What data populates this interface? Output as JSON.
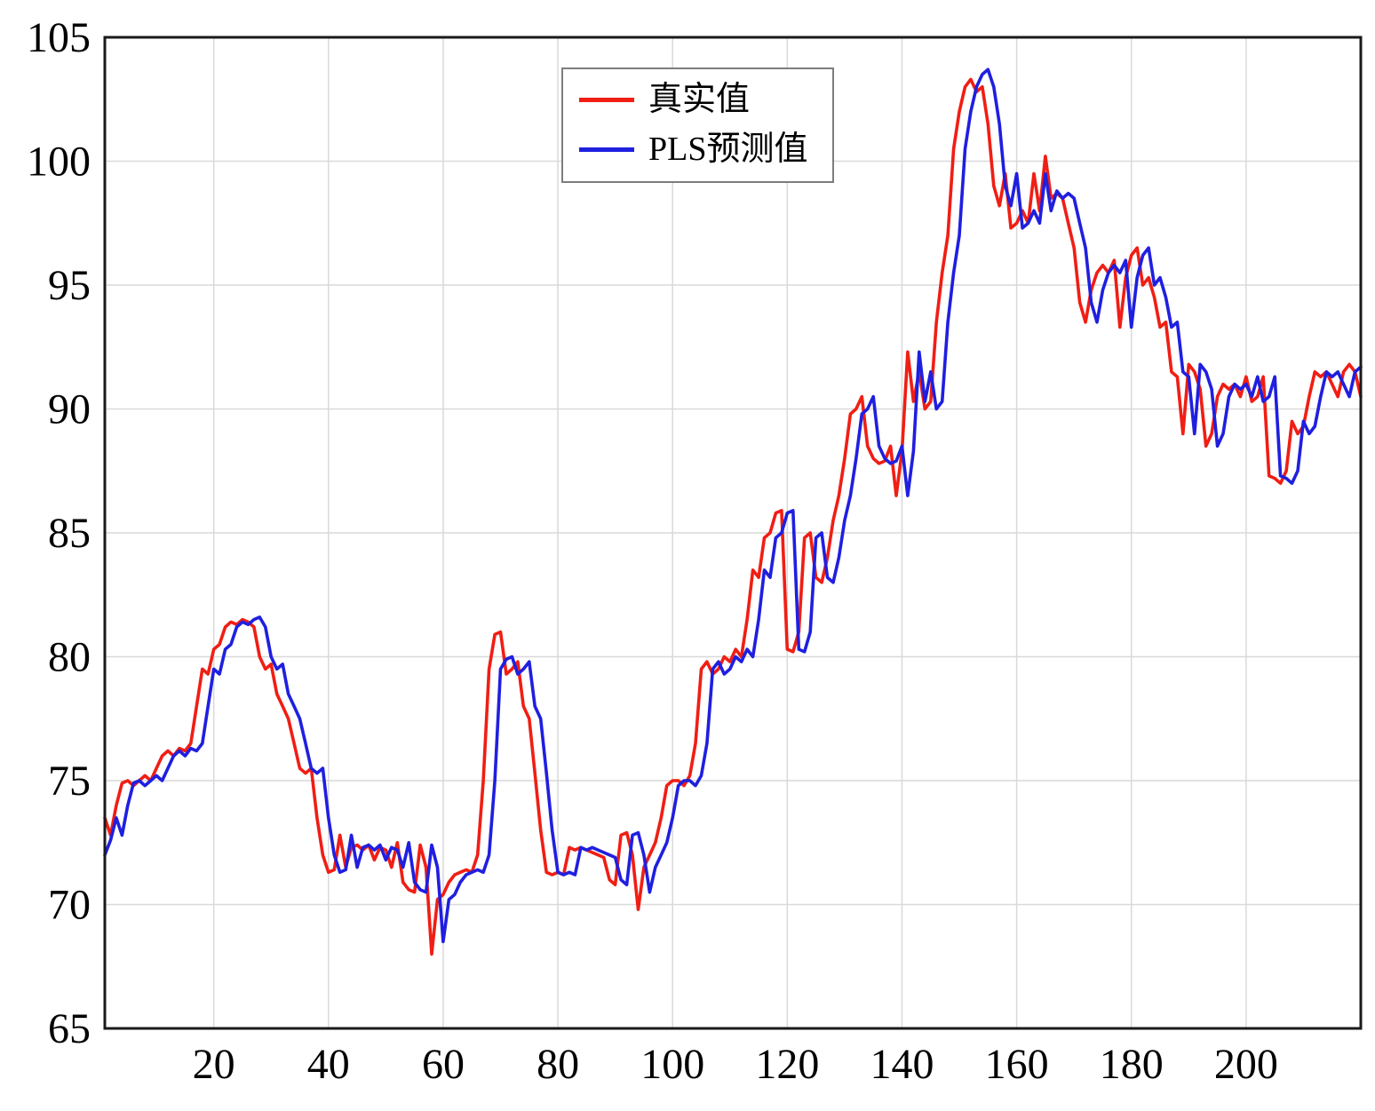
{
  "chart_data": {
    "type": "line",
    "title": "",
    "xlabel": "",
    "ylabel": "",
    "xlim": [
      1,
      220
    ],
    "ylim": [
      65,
      105
    ],
    "xticks": [
      20,
      40,
      60,
      80,
      100,
      120,
      140,
      160,
      180,
      200
    ],
    "yticks": [
      65,
      70,
      75,
      80,
      85,
      90,
      95,
      100,
      105
    ],
    "grid": true,
    "grid_color": "#d9d9d9",
    "legend_position": "top-center",
    "x_start": 1,
    "x_step": 1,
    "series": [
      {
        "name": "真实值",
        "color": "#f01e14",
        "values": [
          73.5,
          72.8,
          74.0,
          74.9,
          75.0,
          74.8,
          75.0,
          75.2,
          75.0,
          75.5,
          76.0,
          76.2,
          76.0,
          76.3,
          76.2,
          76.5,
          78.0,
          79.5,
          79.3,
          80.3,
          80.5,
          81.2,
          81.4,
          81.3,
          81.5,
          81.4,
          81.2,
          80.0,
          79.5,
          79.7,
          78.5,
          78.0,
          77.5,
          76.5,
          75.5,
          75.3,
          75.5,
          73.5,
          72.0,
          71.3,
          71.4,
          72.8,
          71.5,
          72.3,
          72.4,
          72.2,
          72.4,
          71.8,
          72.3,
          72.2,
          71.5,
          72.5,
          70.9,
          70.6,
          70.5,
          72.4,
          71.5,
          68.0,
          70.2,
          70.4,
          70.9,
          71.2,
          71.3,
          71.4,
          71.3,
          72.0,
          75.0,
          79.5,
          80.9,
          81.0,
          79.3,
          79.5,
          79.8,
          78.0,
          77.5,
          75.3,
          73.0,
          71.3,
          71.2,
          71.3,
          71.2,
          72.3,
          72.2,
          72.3,
          72.2,
          72.1,
          72.0,
          71.9,
          71.0,
          70.8,
          72.8,
          72.9,
          72.0,
          69.8,
          71.5,
          72.0,
          72.5,
          73.5,
          74.8,
          75.0,
          75.0,
          74.8,
          75.2,
          76.5,
          79.5,
          79.8,
          79.3,
          79.5,
          80.0,
          79.8,
          80.3,
          80.0,
          81.5,
          83.5,
          83.2,
          84.8,
          85.0,
          85.8,
          85.9,
          80.3,
          80.2,
          81.0,
          84.8,
          85.0,
          83.2,
          83.0,
          84.0,
          85.5,
          86.5,
          88.0,
          89.8,
          90.0,
          90.5,
          88.5,
          88.0,
          87.8,
          87.9,
          88.5,
          86.5,
          88.3,
          92.3,
          90.3,
          91.5,
          90.0,
          90.3,
          93.5,
          95.5,
          97.0,
          100.5,
          102.0,
          103.0,
          103.3,
          102.8,
          103.0,
          101.5,
          99.0,
          98.2,
          99.5,
          97.3,
          97.5,
          98.0,
          97.5,
          99.5,
          98.0,
          100.2,
          98.5,
          98.7,
          98.5,
          97.5,
          96.5,
          94.3,
          93.5,
          94.8,
          95.5,
          95.8,
          95.5,
          96.0,
          93.3,
          95.3,
          96.2,
          96.5,
          95.0,
          95.3,
          94.5,
          93.3,
          93.5,
          91.5,
          91.3,
          89.0,
          91.8,
          91.5,
          90.8,
          88.5,
          89.0,
          90.5,
          91.0,
          90.8,
          91.0,
          90.5,
          91.3,
          90.3,
          90.5,
          91.3,
          87.3,
          87.2,
          87.0,
          87.5,
          89.5,
          89.0,
          89.3,
          90.5,
          91.5,
          91.3,
          91.5,
          91.0,
          90.5,
          91.5,
          91.8,
          91.5,
          90.5
        ]
      },
      {
        "name": "PLS预测值",
        "color": "#1f1fe0",
        "values": [
          72.0,
          72.6,
          73.5,
          72.8,
          74.0,
          74.9,
          75.0,
          74.8,
          75.0,
          75.2,
          75.0,
          75.5,
          76.0,
          76.2,
          76.0,
          76.3,
          76.2,
          76.5,
          78.0,
          79.5,
          79.3,
          80.3,
          80.5,
          81.2,
          81.4,
          81.3,
          81.5,
          81.6,
          81.2,
          80.0,
          79.5,
          79.7,
          78.5,
          78.0,
          77.5,
          76.5,
          75.5,
          75.3,
          75.5,
          73.5,
          72.0,
          71.3,
          71.4,
          72.8,
          71.5,
          72.3,
          72.4,
          72.2,
          72.4,
          71.8,
          72.3,
          72.2,
          71.5,
          72.5,
          70.9,
          70.6,
          70.5,
          72.4,
          71.5,
          68.5,
          70.2,
          70.4,
          70.9,
          71.2,
          71.3,
          71.4,
          71.3,
          72.0,
          75.0,
          79.5,
          79.9,
          80.0,
          79.3,
          79.5,
          79.8,
          78.0,
          77.5,
          75.3,
          73.0,
          71.3,
          71.2,
          71.3,
          71.2,
          72.3,
          72.2,
          72.3,
          72.2,
          72.1,
          72.0,
          71.9,
          71.0,
          70.8,
          72.8,
          72.9,
          72.0,
          70.5,
          71.5,
          72.0,
          72.5,
          73.5,
          74.8,
          75.0,
          75.0,
          74.8,
          75.2,
          76.5,
          79.5,
          79.8,
          79.3,
          79.5,
          80.0,
          79.8,
          80.3,
          80.0,
          81.5,
          83.5,
          83.2,
          84.8,
          85.0,
          85.8,
          85.9,
          80.3,
          80.2,
          81.0,
          84.8,
          85.0,
          83.2,
          83.0,
          84.0,
          85.5,
          86.5,
          88.0,
          89.8,
          90.0,
          90.5,
          88.5,
          88.0,
          87.8,
          87.9,
          88.5,
          86.5,
          88.3,
          92.3,
          90.3,
          91.5,
          90.0,
          90.3,
          93.5,
          95.5,
          97.0,
          100.5,
          102.0,
          103.0,
          103.5,
          103.7,
          103.0,
          101.5,
          99.0,
          98.2,
          99.5,
          97.3,
          97.5,
          98.0,
          97.5,
          99.5,
          98.0,
          98.8,
          98.5,
          98.7,
          98.5,
          97.5,
          96.5,
          94.3,
          93.5,
          94.8,
          95.5,
          95.8,
          95.5,
          96.0,
          93.3,
          95.3,
          96.2,
          96.5,
          95.0,
          95.3,
          94.5,
          93.3,
          93.5,
          91.5,
          91.3,
          89.0,
          91.8,
          91.5,
          90.8,
          88.5,
          89.0,
          90.5,
          91.0,
          90.8,
          91.0,
          90.5,
          91.3,
          90.3,
          90.5,
          91.3,
          87.3,
          87.2,
          87.0,
          87.5,
          89.5,
          89.0,
          89.3,
          90.5,
          91.5,
          91.3,
          91.5,
          91.0,
          90.5,
          91.5,
          91.7
        ]
      }
    ]
  }
}
